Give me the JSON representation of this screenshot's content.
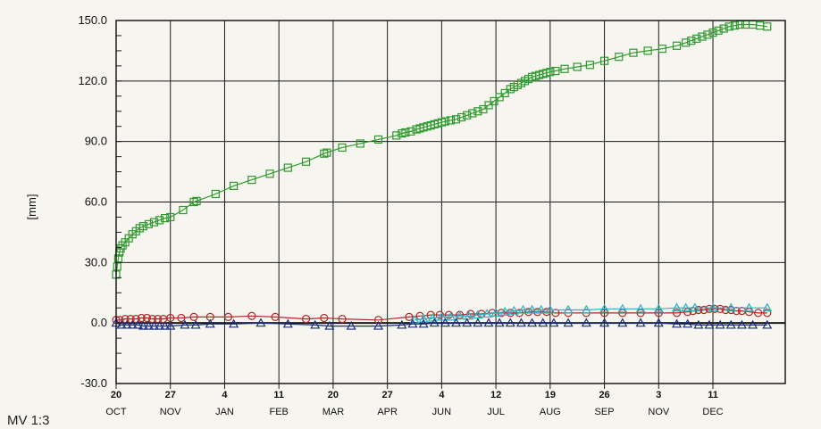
{
  "footer": {
    "label": "MV 1:3"
  },
  "chart_data": {
    "type": "line",
    "title": "",
    "xlabel": "",
    "ylabel": "[mm]",
    "ylim": [
      -30,
      150
    ],
    "y_ticks": [
      -30,
      0,
      30,
      60,
      90,
      120,
      150
    ],
    "y_tick_labels": [
      "-30.0",
      "0.0",
      "30.0",
      "60.0",
      "90.0",
      "120.0",
      "150.0"
    ],
    "x_tick_days": [
      "20",
      "27",
      "4",
      "11",
      "20",
      "27",
      "4",
      "12",
      "19",
      "26",
      "3",
      "11"
    ],
    "x_tick_months": [
      "OCT",
      "NOV",
      "JAN",
      "FEB",
      "MAR",
      "APR",
      "JUN",
      "JUL",
      "AUG",
      "SEP",
      "NOV",
      "DEC"
    ],
    "grid": true,
    "legend": "none",
    "colors": {
      "green": "#2e9a2e",
      "red": "#b02a2a",
      "cyan": "#2bb3c4",
      "navy": "#1a2f7a",
      "grid": "#1a1a1a"
    },
    "series": [
      {
        "color": "green",
        "marker": "square",
        "points": [
          [
            0.0,
            24
          ],
          [
            0.06,
            28
          ],
          [
            0.12,
            32
          ],
          [
            0.18,
            35
          ],
          [
            0.25,
            37
          ],
          [
            0.35,
            38.5
          ],
          [
            0.5,
            40
          ],
          [
            0.7,
            42
          ],
          [
            0.9,
            44
          ],
          [
            1.1,
            45.5
          ],
          [
            1.3,
            47
          ],
          [
            1.5,
            48
          ],
          [
            1.8,
            49
          ],
          [
            2.1,
            50
          ],
          [
            2.4,
            51
          ],
          [
            2.7,
            52
          ],
          [
            3.0,
            52.5
          ],
          [
            3.7,
            56
          ],
          [
            4.3,
            60
          ],
          [
            4.45,
            60.5
          ],
          [
            5.5,
            64
          ],
          [
            6.5,
            68
          ],
          [
            7.5,
            71
          ],
          [
            8.5,
            74
          ],
          [
            9.5,
            77
          ],
          [
            10.5,
            80
          ],
          [
            11.5,
            84
          ],
          [
            11.65,
            84.5
          ],
          [
            12.5,
            87
          ],
          [
            13.5,
            89
          ],
          [
            14.5,
            91
          ],
          [
            15.5,
            93
          ],
          [
            15.8,
            94
          ],
          [
            16.0,
            94.5
          ],
          [
            16.3,
            95
          ],
          [
            16.6,
            96
          ],
          [
            16.8,
            96.5
          ],
          [
            17.0,
            97
          ],
          [
            17.2,
            97.5
          ],
          [
            17.4,
            98
          ],
          [
            17.6,
            98.5
          ],
          [
            17.8,
            99
          ],
          [
            18.0,
            99.5
          ],
          [
            18.2,
            100
          ],
          [
            18.5,
            100.5
          ],
          [
            18.8,
            101
          ],
          [
            19.1,
            102
          ],
          [
            19.4,
            103
          ],
          [
            19.7,
            104
          ],
          [
            20.0,
            105
          ],
          [
            20.3,
            106
          ],
          [
            20.6,
            108
          ],
          [
            20.9,
            110
          ],
          [
            21.2,
            112
          ],
          [
            21.5,
            114
          ],
          [
            21.8,
            116
          ],
          [
            22.0,
            117
          ],
          [
            22.2,
            118
          ],
          [
            22.4,
            119
          ],
          [
            22.6,
            120
          ],
          [
            22.8,
            121
          ],
          [
            23.0,
            122
          ],
          [
            23.2,
            122.5
          ],
          [
            23.4,
            123
          ],
          [
            23.6,
            123.5
          ],
          [
            23.8,
            124
          ],
          [
            24.0,
            124.5
          ],
          [
            24.3,
            125
          ],
          [
            24.8,
            126
          ],
          [
            25.5,
            127
          ],
          [
            26.2,
            128
          ],
          [
            27.0,
            130
          ],
          [
            27.8,
            132
          ],
          [
            28.6,
            134
          ],
          [
            29.4,
            135
          ],
          [
            30.2,
            136
          ],
          [
            31.0,
            137.5
          ],
          [
            31.5,
            139
          ],
          [
            31.8,
            140
          ],
          [
            32.1,
            141
          ],
          [
            32.4,
            142
          ],
          [
            32.7,
            143
          ],
          [
            33.0,
            144
          ],
          [
            33.3,
            145
          ],
          [
            33.6,
            146
          ],
          [
            33.9,
            147
          ],
          [
            34.2,
            147.5
          ],
          [
            34.5,
            148
          ],
          [
            34.8,
            148
          ],
          [
            35.2,
            148
          ],
          [
            35.6,
            147.5
          ],
          [
            36.0,
            147
          ]
        ]
      },
      {
        "color": "red",
        "marker": "circle",
        "points": [
          [
            0.0,
            1.5
          ],
          [
            0.2,
            1.5
          ],
          [
            0.5,
            2
          ],
          [
            0.8,
            2
          ],
          [
            1.1,
            2
          ],
          [
            1.4,
            2.5
          ],
          [
            1.7,
            2.5
          ],
          [
            2.0,
            2
          ],
          [
            2.3,
            2
          ],
          [
            2.6,
            2
          ],
          [
            3.0,
            2.5
          ],
          [
            3.6,
            2.5
          ],
          [
            4.3,
            3
          ],
          [
            5.2,
            3
          ],
          [
            6.2,
            3
          ],
          [
            7.5,
            3.5
          ],
          [
            8.8,
            3
          ],
          [
            10.5,
            2
          ],
          [
            11.5,
            2.5
          ],
          [
            12.5,
            2
          ],
          [
            14.5,
            1.5
          ],
          [
            16.2,
            3
          ],
          [
            16.8,
            3.5
          ],
          [
            17.4,
            4
          ],
          [
            17.9,
            4
          ],
          [
            18.4,
            4
          ],
          [
            19.0,
            4
          ],
          [
            19.6,
            4.5
          ],
          [
            20.2,
            4.5
          ],
          [
            20.8,
            5
          ],
          [
            21.3,
            5
          ],
          [
            21.8,
            5
          ],
          [
            22.3,
            5
          ],
          [
            22.8,
            5.5
          ],
          [
            23.3,
            5.5
          ],
          [
            23.8,
            5.5
          ],
          [
            24.3,
            5
          ],
          [
            25.0,
            5
          ],
          [
            26.0,
            5
          ],
          [
            27.0,
            5
          ],
          [
            28.0,
            5
          ],
          [
            29.0,
            5
          ],
          [
            30.0,
            5
          ],
          [
            31.0,
            5
          ],
          [
            31.6,
            5.5
          ],
          [
            31.9,
            6
          ],
          [
            32.2,
            6.5
          ],
          [
            32.5,
            6.5
          ],
          [
            32.8,
            7
          ],
          [
            33.1,
            7
          ],
          [
            33.4,
            7
          ],
          [
            33.7,
            6.5
          ],
          [
            34.0,
            6.5
          ],
          [
            34.3,
            6
          ],
          [
            34.6,
            6
          ],
          [
            35.0,
            5.5
          ],
          [
            35.5,
            5
          ],
          [
            36.0,
            5
          ]
        ]
      },
      {
        "color": "cyan",
        "marker": "triangle",
        "points": [
          [
            16.5,
            1.5
          ],
          [
            17.0,
            2
          ],
          [
            17.5,
            2.5
          ],
          [
            18.0,
            3
          ],
          [
            18.5,
            3
          ],
          [
            19.0,
            3.5
          ],
          [
            19.5,
            3.5
          ],
          [
            20.0,
            4
          ],
          [
            20.5,
            4.5
          ],
          [
            21.0,
            5
          ],
          [
            21.5,
            5.5
          ],
          [
            22.0,
            6
          ],
          [
            22.5,
            6.5
          ],
          [
            23.0,
            6.5
          ],
          [
            23.5,
            6.5
          ],
          [
            24.0,
            6.5
          ],
          [
            25.0,
            6.5
          ],
          [
            26.0,
            6.5
          ],
          [
            27.0,
            7
          ],
          [
            28.0,
            7
          ],
          [
            29.0,
            7
          ],
          [
            30.0,
            7
          ],
          [
            31.0,
            7.5
          ],
          [
            31.5,
            7.5
          ],
          [
            32.0,
            7.5
          ],
          [
            33.0,
            7.5
          ],
          [
            34.0,
            7.5
          ],
          [
            35.0,
            7.5
          ],
          [
            36.0,
            7.5
          ]
        ]
      },
      {
        "color": "navy",
        "marker": "triangle",
        "points": [
          [
            0.0,
            0
          ],
          [
            0.3,
            -1
          ],
          [
            0.6,
            -1
          ],
          [
            0.9,
            -1
          ],
          [
            1.2,
            -1
          ],
          [
            1.5,
            -1.5
          ],
          [
            1.8,
            -1.5
          ],
          [
            2.1,
            -1.5
          ],
          [
            2.4,
            -1.5
          ],
          [
            2.7,
            -1.5
          ],
          [
            3.0,
            -1.5
          ],
          [
            3.8,
            -1
          ],
          [
            4.4,
            -1
          ],
          [
            5.2,
            -0.5
          ],
          [
            6.5,
            -0.5
          ],
          [
            8.0,
            0
          ],
          [
            9.5,
            -0.5
          ],
          [
            11.0,
            -1
          ],
          [
            11.8,
            -1.5
          ],
          [
            13.0,
            -1.5
          ],
          [
            14.5,
            -1.5
          ],
          [
            15.8,
            -1
          ],
          [
            16.4,
            -0.5
          ],
          [
            17.0,
            -0.5
          ],
          [
            17.6,
            0
          ],
          [
            18.2,
            0
          ],
          [
            18.8,
            0
          ],
          [
            19.4,
            0
          ],
          [
            20.0,
            0
          ],
          [
            20.6,
            0
          ],
          [
            21.2,
            0
          ],
          [
            21.8,
            0
          ],
          [
            22.4,
            0
          ],
          [
            23.0,
            0
          ],
          [
            23.6,
            0
          ],
          [
            24.2,
            0
          ],
          [
            25.0,
            0
          ],
          [
            26.0,
            0
          ],
          [
            27.0,
            0
          ],
          [
            28.0,
            0
          ],
          [
            29.0,
            0
          ],
          [
            30.0,
            0
          ],
          [
            31.0,
            -0.5
          ],
          [
            31.6,
            -0.5
          ],
          [
            32.2,
            -1
          ],
          [
            32.8,
            -1
          ],
          [
            33.4,
            -1
          ],
          [
            34.0,
            -1
          ],
          [
            34.6,
            -1
          ],
          [
            35.2,
            -1
          ],
          [
            36.0,
            -1
          ]
        ]
      }
    ]
  }
}
